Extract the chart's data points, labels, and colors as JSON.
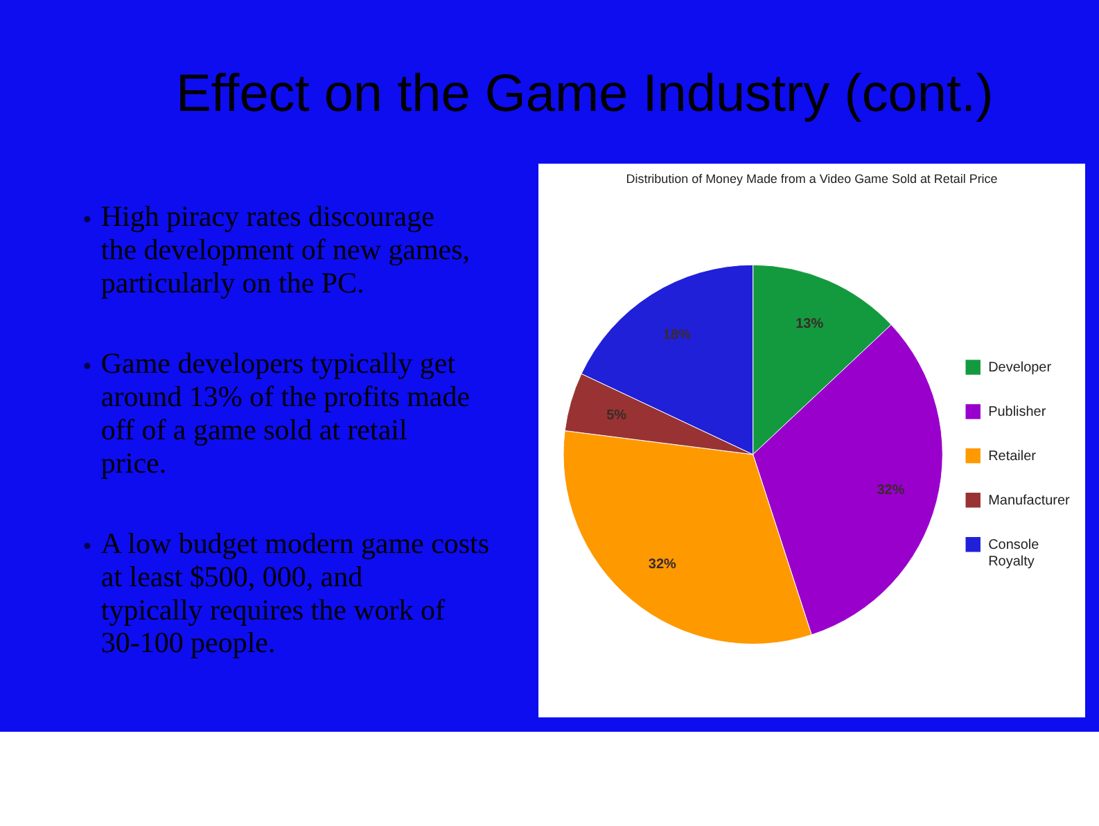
{
  "chart_data": {
    "type": "pie",
    "title": "Effect on the Game Industry (cont.)",
    "subtitle": "Distribution of Money Made from a Video Game Sold at Retail Price",
    "categories": [
      "Developer",
      "Publisher",
      "Retailer",
      "Manufacturer",
      "Console Royalty"
    ],
    "values": [
      13,
      32,
      32,
      5,
      18
    ],
    "value_labels": [
      "13%",
      "32%",
      "32%",
      "5%",
      "18%"
    ],
    "colors": [
      "#139a3e",
      "#9900cc",
      "#ff9900",
      "#993333",
      "#2020d8"
    ],
    "legend": "right",
    "annotations": [
      "High piracy rates discourage the development of new games, particularly on the PC.",
      "Game developers typically get around 13% of the profits made off of a game sold at retail price.",
      "A low budget modern game costs at least $500, 000, and typically requires the work of 30-100 people."
    ]
  }
}
